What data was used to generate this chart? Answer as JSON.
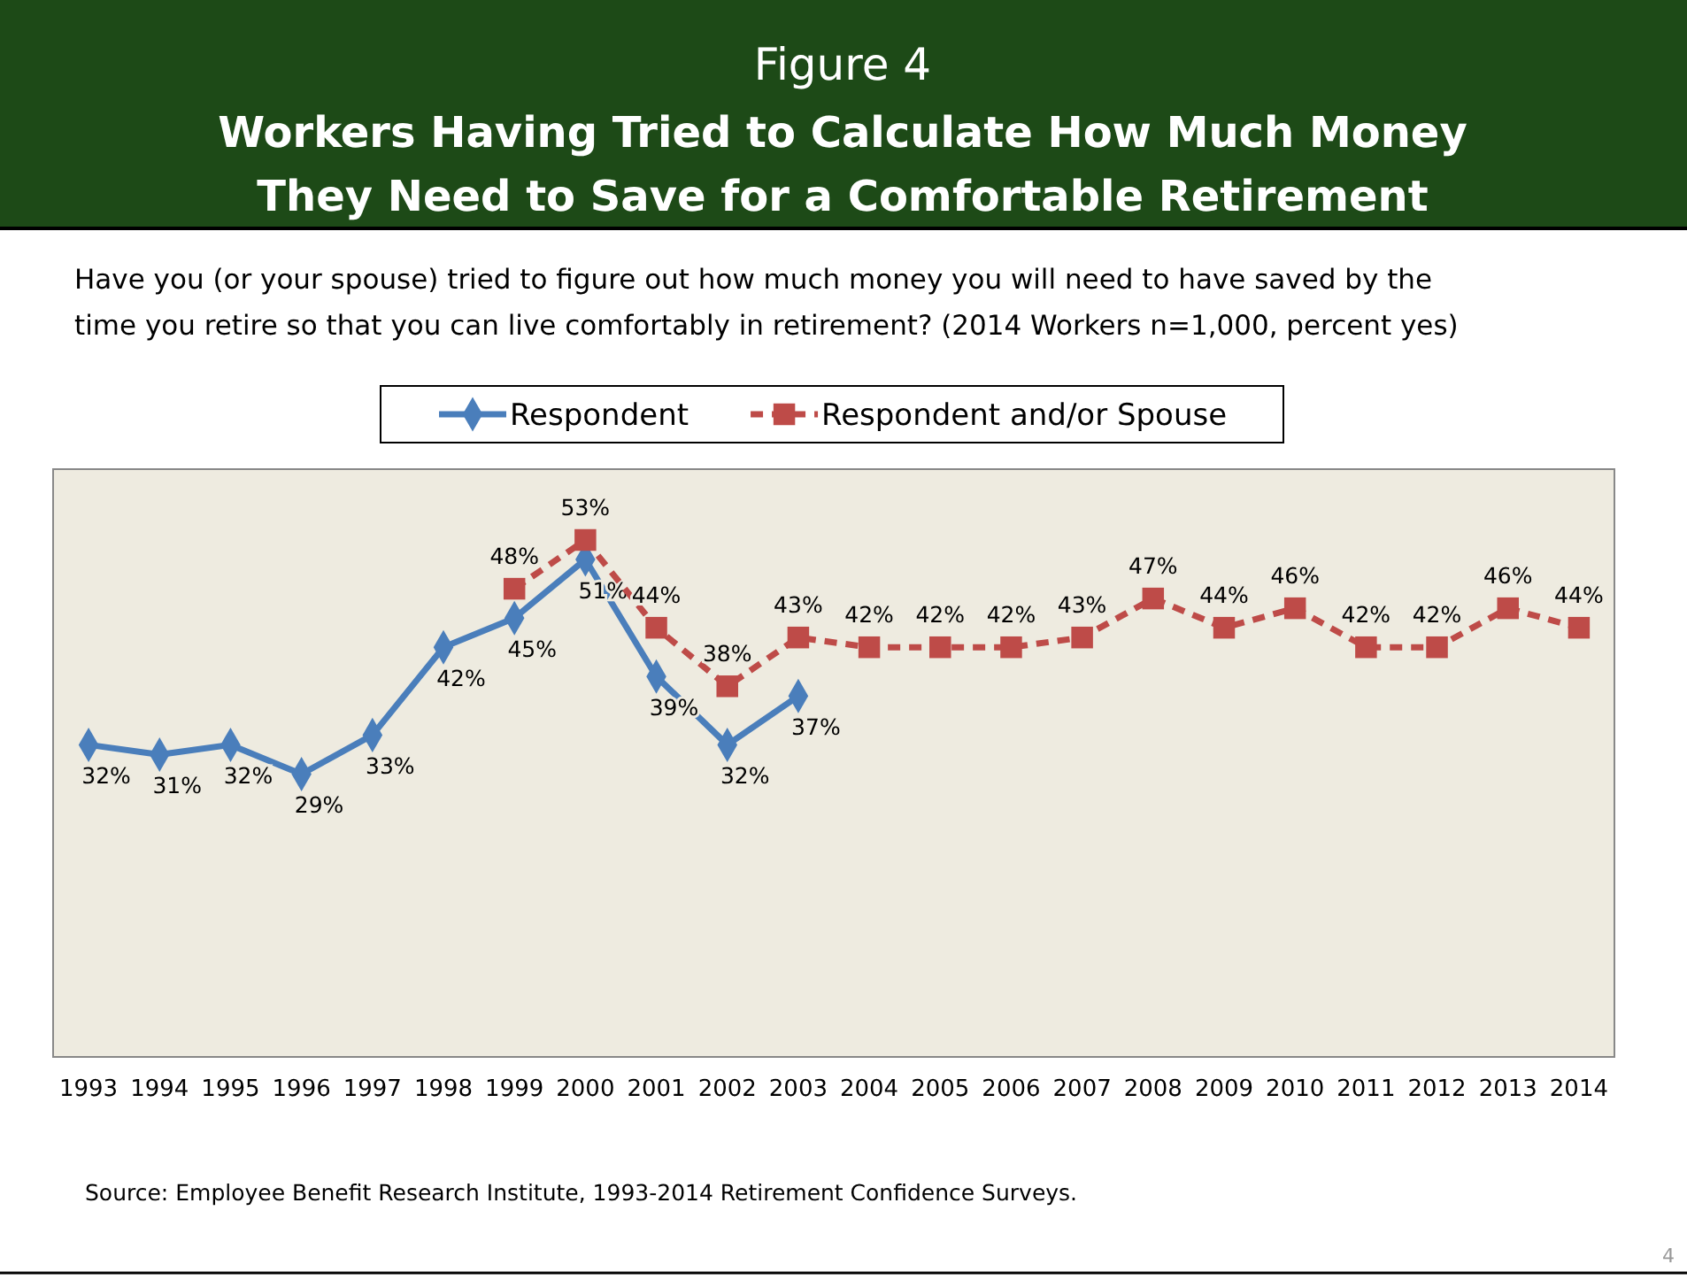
{
  "chart_data": {
    "type": "line",
    "title": "Figure 4",
    "subtitle": [
      "Workers Having Tried to Calculate How Much Money",
      "They Need to Save for a Comfortable Retirement",
      "Have you (or your spouse) tried to figure out how much money you will need to have saved by the",
      "time you retire so that you can live comfortably in retirement?  (2014 Workers n=1,000, percent yes)"
    ],
    "categories": [
      "1993",
      "1994",
      "1995",
      "1996",
      "1997",
      "1998",
      "1999",
      "2000",
      "2001",
      "2002",
      "2003",
      "2004",
      "2005",
      "2006",
      "2007",
      "2008",
      "2009",
      "2010",
      "2011",
      "2012",
      "2013",
      "2014"
    ],
    "series": [
      {
        "name": "Respondent",
        "color": "#4a7ebb",
        "marker": "diamond",
        "line_style": "solid",
        "values": [
          32,
          31,
          32,
          29,
          33,
          42,
          45,
          51,
          39,
          32,
          37,
          null,
          null,
          null,
          null,
          null,
          null,
          null,
          null,
          null,
          null,
          null
        ],
        "value_labels": [
          "32%",
          "31%",
          "32%",
          "29%",
          "33%",
          "42%",
          "45%",
          "51%",
          "39%",
          "32%",
          "37%",
          null,
          null,
          null,
          null,
          null,
          null,
          null,
          null,
          null,
          null,
          null
        ]
      },
      {
        "name": "Respondent and/or Spouse",
        "color": "#be4b48",
        "marker": "square",
        "line_style": "dashed",
        "values": [
          null,
          null,
          null,
          null,
          null,
          null,
          48,
          53,
          44,
          38,
          43,
          42,
          42,
          42,
          43,
          47,
          44,
          46,
          42,
          42,
          46,
          44
        ],
        "value_labels": [
          null,
          null,
          null,
          null,
          null,
          null,
          "48%",
          "53%",
          "44%",
          "38%",
          "43%",
          "42%",
          "42%",
          "42%",
          "43%",
          "47%",
          "44%",
          "46%",
          "42%",
          "42%",
          "46%",
          "44%"
        ]
      }
    ],
    "tick_labels": "x",
    "legend": "top",
    "grid": false,
    "annotations": [
      "Source:  Employee Benefit Research Institute, 1993-2014 Retirement Confidence Surveys.",
      "4"
    ]
  }
}
